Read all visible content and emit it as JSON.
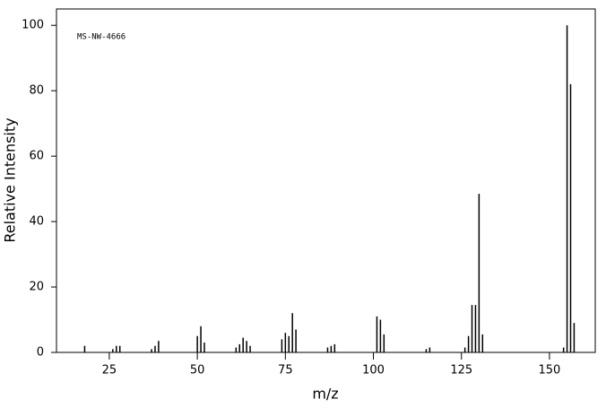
{
  "chart_data": {
    "type": "stick",
    "annotation": "MS-NW-4666",
    "x_label": "m/z",
    "y_label": "Relative Intensity",
    "color": "#000000",
    "x": [
      18,
      26,
      27,
      28,
      37,
      38,
      39,
      50,
      51,
      52,
      61,
      62,
      63,
      64,
      65,
      74,
      75,
      76,
      77,
      78,
      87,
      88,
      89,
      101,
      102,
      103,
      115,
      116,
      126,
      127,
      128,
      129,
      130,
      131,
      154,
      155,
      156,
      157
    ],
    "values": [
      2,
      1,
      2,
      2,
      1,
      2,
      3.5,
      5,
      8,
      3,
      1.5,
      2.5,
      4.5,
      3.5,
      2,
      4,
      6,
      5,
      12,
      7,
      1.5,
      2,
      2.5,
      11,
      10,
      5.5,
      1,
      1.5,
      1.5,
      5,
      14.5,
      14.5,
      48.5,
      5.5,
      1.5,
      100,
      82,
      9
    ],
    "xlim": [
      10,
      163
    ],
    "ylim": [
      0,
      105
    ],
    "xticks": [
      25,
      50,
      75,
      100,
      125,
      150
    ],
    "yticks": [
      0,
      20,
      40,
      60,
      80,
      100
    ]
  }
}
